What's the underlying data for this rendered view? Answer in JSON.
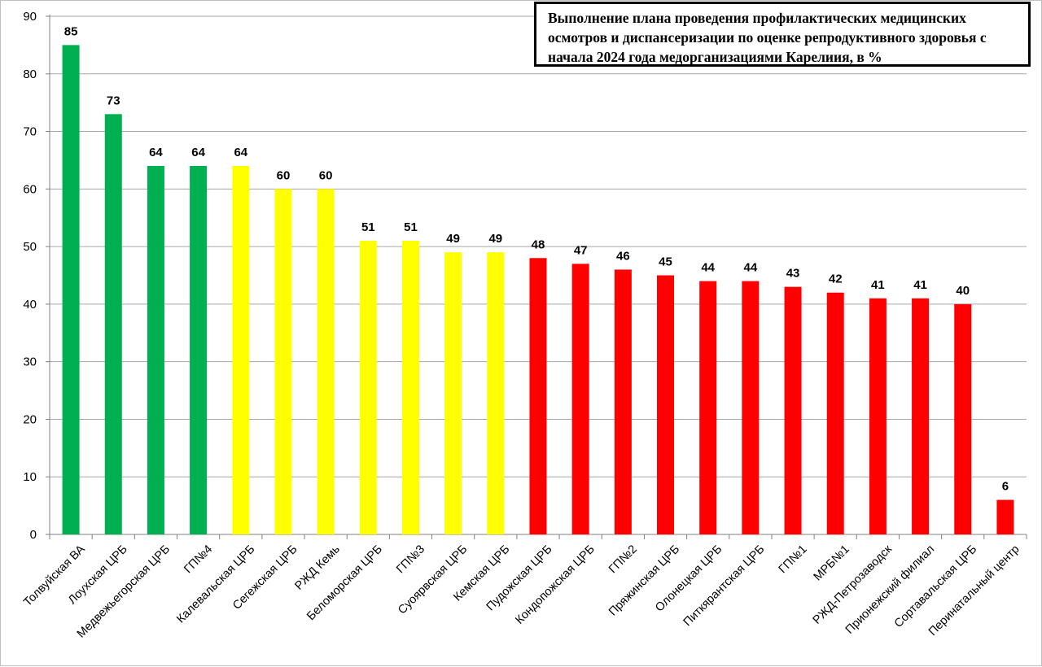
{
  "chart_data": {
    "type": "bar",
    "title": "Выполнение плана проведения профилактических медицинских осмотров и диспансеризации по оценке репродуктивного здоровья с начала 2024 года медорганизациями Карелиия, в %",
    "xlabel": "",
    "ylabel": "",
    "ylim": [
      0,
      90
    ],
    "yticks": [
      0,
      10,
      20,
      30,
      40,
      50,
      60,
      70,
      80,
      90
    ],
    "grid": true,
    "legend": "none",
    "categories": [
      "Толвуйская ВА",
      "Лоухская ЦРБ",
      "Медвежьегорская ЦРБ",
      "ГП№4",
      "Калевальская ЦРБ",
      "Сегежская ЦРБ",
      "РЖД Кемь",
      "Беломорская ЦРБ",
      "ГП№3",
      "Суоярвская ЦРБ",
      "Кемская ЦРБ",
      "Пудожская ЦРБ",
      "Кондопожская ЦРБ",
      "ГП№2",
      "Пряжинская ЦРБ",
      "Олонецкая ЦРБ",
      "Питкярантская ЦРБ",
      "ГП№1",
      "МРБ№1",
      "РЖД-Петрозаводск",
      "Прионежский филиал",
      "Сортавальская ЦРБ",
      "Перинатальный центр"
    ],
    "values": [
      85,
      73,
      64,
      64,
      64,
      60,
      60,
      51,
      51,
      49,
      49,
      48,
      47,
      46,
      45,
      44,
      44,
      43,
      42,
      41,
      41,
      40,
      6
    ],
    "bar_colors": [
      "#00b050",
      "#00b050",
      "#00b050",
      "#00b050",
      "#ffff00",
      "#ffff00",
      "#ffff00",
      "#ffff00",
      "#ffff00",
      "#ffff00",
      "#ffff00",
      "#ff0000",
      "#ff0000",
      "#ff0000",
      "#ff0000",
      "#ff0000",
      "#ff0000",
      "#ff0000",
      "#ff0000",
      "#ff0000",
      "#ff0000",
      "#ff0000",
      "#ff0000"
    ],
    "gridline_color": "#a6a6a6",
    "axis_color": "#808080"
  }
}
